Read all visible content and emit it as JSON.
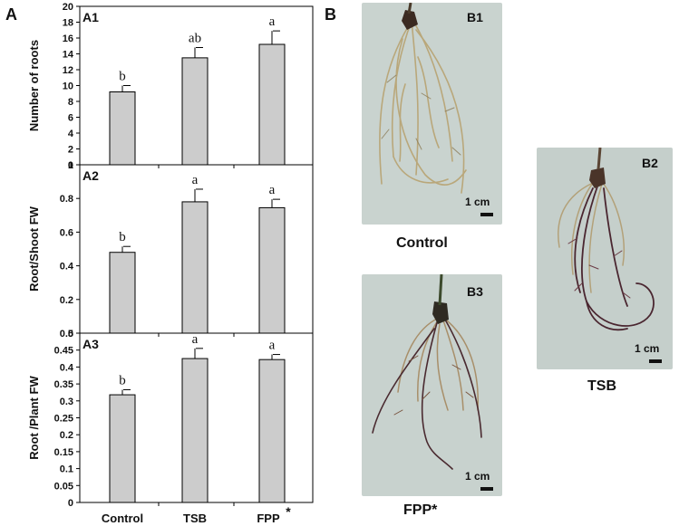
{
  "panels": {
    "a_label": "A",
    "b_label": "B"
  },
  "chart_data": [
    {
      "id": "A1",
      "type": "bar",
      "label": "A1",
      "categories": [
        "Control",
        "TSB",
        "FPP"
      ],
      "values": [
        9.2,
        13.5,
        15.2
      ],
      "errors": [
        0.8,
        1.3,
        1.7
      ],
      "letters": [
        "b",
        "ab",
        "a"
      ],
      "ylabel": "Number of roots",
      "ylim": [
        0,
        20
      ],
      "yticks": [
        0,
        2,
        4,
        6,
        8,
        10,
        12,
        14,
        16,
        18,
        20
      ],
      "ytick_labels": [
        "0",
        "2",
        "4",
        "6",
        "8",
        "10",
        "12",
        "14",
        "16",
        "18",
        "20"
      ]
    },
    {
      "id": "A2",
      "type": "bar",
      "label": "A2",
      "categories": [
        "Control",
        "TSB",
        "FPP"
      ],
      "values": [
        0.48,
        0.78,
        0.745
      ],
      "errors": [
        0.035,
        0.075,
        0.05
      ],
      "letters": [
        "b",
        "a",
        "a"
      ],
      "ylabel": "Root/Shoot FW",
      "ylim": [
        0,
        1.0
      ],
      "yticks": [
        0,
        0.2,
        0.4,
        0.6,
        0.8,
        1.0
      ],
      "ytick_labels": [
        "0",
        "0.2",
        "0.4",
        "0.6",
        "0.8",
        "1"
      ]
    },
    {
      "id": "A3",
      "type": "bar",
      "label": "A3",
      "categories": [
        "Control",
        "TSB",
        "FPP"
      ],
      "values": [
        0.318,
        0.425,
        0.422
      ],
      "errors": [
        0.015,
        0.03,
        0.015
      ],
      "letters": [
        "b",
        "a",
        "a"
      ],
      "ylabel": "Root /Plant FW",
      "ylim": [
        0,
        0.5
      ],
      "yticks": [
        0,
        0.05,
        0.1,
        0.15,
        0.2,
        0.25,
        0.3,
        0.35,
        0.4,
        0.45,
        0.5
      ],
      "ytick_labels": [
        "0",
        "0.05",
        "0.1",
        "0.15",
        "0.2",
        "0.25",
        "0.3",
        "0.35",
        "0.4",
        "0.45",
        "0.5"
      ]
    }
  ],
  "x_axis_labels": [
    "Control",
    "TSB",
    "FPP"
  ],
  "fpp_asterisk": "*",
  "colors": {
    "bar_fill": "#cccccc",
    "axis": "#000000",
    "photo_bg": "#c7d1cd",
    "root_light": "#b9a77a",
    "root_dark": "#4a2630"
  },
  "photos": [
    {
      "tag": "B1",
      "caption": "Control",
      "scale_label": "1 cm"
    },
    {
      "tag": "B2",
      "caption": "TSB",
      "scale_label": "1 cm"
    },
    {
      "tag": "B3",
      "caption": "FPP*",
      "scale_label": "1 cm"
    }
  ]
}
